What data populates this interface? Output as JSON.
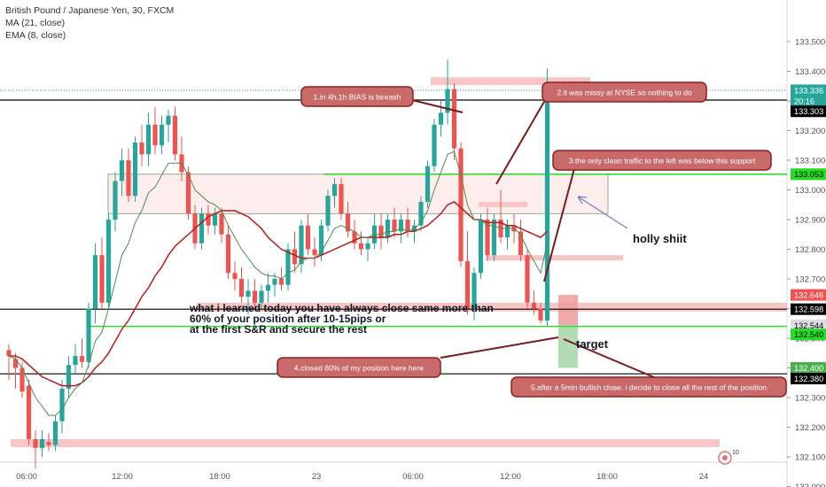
{
  "header": {
    "title": "British Pound / Japanese Yen, 30, FXCM",
    "indicators": [
      "MA (21, close)",
      "EMA (8, close)"
    ]
  },
  "colors": {
    "bull": "#26a69a",
    "bear": "#ef5350",
    "ma21": "#b71c1c",
    "ema8": "#4e8a4e",
    "zone_fill": "#f6c6c6",
    "box_fill": "#fde9e9",
    "green_line": "#22dd22",
    "note_fill": "#c96a6a",
    "note_border": "#8e2020",
    "note_text": "#ffffff",
    "arrow": "#7a1a1a"
  },
  "chart_data": {
    "type": "candlestick",
    "title": "British Pound / Japanese Yen, 30, FXCM",
    "ylim": [
      131.96,
      133.5
    ],
    "y_ticks": [
      "133.500",
      "133.400",
      "133.300",
      "133.200",
      "133.100",
      "133.000",
      "132.900",
      "132.800",
      "132.700",
      "132.600",
      "132.500",
      "132.400",
      "132.300",
      "132.200",
      "132.100",
      "132.000"
    ],
    "x_ticks": [
      "06:00",
      "12:00",
      "18:00",
      "23",
      "06:00",
      "12:00",
      "18:00",
      "24"
    ],
    "candles": [
      {
        "o": 132.46,
        "h": 132.48,
        "l": 132.36,
        "c": 132.44
      },
      {
        "o": 132.43,
        "h": 132.45,
        "l": 132.33,
        "c": 132.4
      },
      {
        "o": 132.4,
        "h": 132.42,
        "l": 132.3,
        "c": 132.32
      },
      {
        "o": 132.34,
        "h": 132.36,
        "l": 132.14,
        "c": 132.16
      },
      {
        "o": 132.16,
        "h": 132.19,
        "l": 132.06,
        "c": 132.13
      },
      {
        "o": 132.13,
        "h": 132.19,
        "l": 132.1,
        "c": 132.16
      },
      {
        "o": 132.15,
        "h": 132.18,
        "l": 132.12,
        "c": 132.14
      },
      {
        "o": 132.14,
        "h": 132.24,
        "l": 132.12,
        "c": 132.22
      },
      {
        "o": 132.22,
        "h": 132.36,
        "l": 132.18,
        "c": 132.33
      },
      {
        "o": 132.33,
        "h": 132.44,
        "l": 132.3,
        "c": 132.41
      },
      {
        "o": 132.41,
        "h": 132.48,
        "l": 132.38,
        "c": 132.44
      },
      {
        "o": 132.44,
        "h": 132.5,
        "l": 132.4,
        "c": 132.42
      },
      {
        "o": 132.42,
        "h": 132.62,
        "l": 132.4,
        "c": 132.6
      },
      {
        "o": 132.6,
        "h": 132.82,
        "l": 132.55,
        "c": 132.78
      },
      {
        "o": 132.78,
        "h": 132.84,
        "l": 132.6,
        "c": 132.62
      },
      {
        "o": 132.62,
        "h": 132.92,
        "l": 132.6,
        "c": 132.9
      },
      {
        "o": 132.9,
        "h": 133.06,
        "l": 132.86,
        "c": 133.03
      },
      {
        "o": 133.03,
        "h": 133.14,
        "l": 132.98,
        "c": 133.1
      },
      {
        "o": 133.1,
        "h": 133.14,
        "l": 132.96,
        "c": 132.98
      },
      {
        "o": 132.98,
        "h": 133.18,
        "l": 132.96,
        "c": 133.16
      },
      {
        "o": 133.16,
        "h": 133.22,
        "l": 133.08,
        "c": 133.12
      },
      {
        "o": 133.12,
        "h": 133.26,
        "l": 133.08,
        "c": 133.22
      },
      {
        "o": 133.22,
        "h": 133.28,
        "l": 133.12,
        "c": 133.15
      },
      {
        "o": 133.15,
        "h": 133.25,
        "l": 133.12,
        "c": 133.22
      },
      {
        "o": 133.22,
        "h": 133.27,
        "l": 133.16,
        "c": 133.25
      },
      {
        "o": 133.25,
        "h": 133.28,
        "l": 133.1,
        "c": 133.12
      },
      {
        "o": 133.12,
        "h": 133.18,
        "l": 133.03,
        "c": 133.06
      },
      {
        "o": 133.06,
        "h": 133.08,
        "l": 132.9,
        "c": 132.92
      },
      {
        "o": 132.92,
        "h": 132.95,
        "l": 132.8,
        "c": 132.82
      },
      {
        "o": 132.82,
        "h": 132.94,
        "l": 132.8,
        "c": 132.92
      },
      {
        "o": 132.92,
        "h": 132.95,
        "l": 132.85,
        "c": 132.88
      },
      {
        "o": 132.88,
        "h": 132.94,
        "l": 132.85,
        "c": 132.92
      },
      {
        "o": 132.92,
        "h": 132.94,
        "l": 132.82,
        "c": 132.85
      },
      {
        "o": 132.85,
        "h": 132.88,
        "l": 132.7,
        "c": 132.72
      },
      {
        "o": 132.72,
        "h": 132.76,
        "l": 132.66,
        "c": 132.7
      },
      {
        "o": 132.7,
        "h": 132.74,
        "l": 132.62,
        "c": 132.64
      },
      {
        "o": 132.64,
        "h": 132.7,
        "l": 132.58,
        "c": 132.66
      },
      {
        "o": 132.66,
        "h": 132.7,
        "l": 132.6,
        "c": 132.62
      },
      {
        "o": 132.62,
        "h": 132.68,
        "l": 132.6,
        "c": 132.66
      },
      {
        "o": 132.66,
        "h": 132.72,
        "l": 132.62,
        "c": 132.68
      },
      {
        "o": 132.68,
        "h": 132.72,
        "l": 132.64,
        "c": 132.7
      },
      {
        "o": 132.7,
        "h": 132.74,
        "l": 132.66,
        "c": 132.68
      },
      {
        "o": 132.68,
        "h": 132.82,
        "l": 132.66,
        "c": 132.8
      },
      {
        "o": 132.8,
        "h": 132.86,
        "l": 132.72,
        "c": 132.75
      },
      {
        "o": 132.75,
        "h": 132.9,
        "l": 132.72,
        "c": 132.88
      },
      {
        "o": 132.88,
        "h": 132.92,
        "l": 132.78,
        "c": 132.8
      },
      {
        "o": 132.8,
        "h": 132.84,
        "l": 132.74,
        "c": 132.78
      },
      {
        "o": 132.78,
        "h": 132.9,
        "l": 132.76,
        "c": 132.88
      },
      {
        "o": 132.88,
        "h": 133.0,
        "l": 132.86,
        "c": 132.98
      },
      {
        "o": 132.98,
        "h": 133.04,
        "l": 132.94,
        "c": 133.02
      },
      {
        "o": 133.02,
        "h": 133.04,
        "l": 132.9,
        "c": 132.92
      },
      {
        "o": 132.92,
        "h": 132.96,
        "l": 132.84,
        "c": 132.86
      },
      {
        "o": 132.86,
        "h": 132.9,
        "l": 132.8,
        "c": 132.82
      },
      {
        "o": 132.82,
        "h": 132.86,
        "l": 132.78,
        "c": 132.8
      },
      {
        "o": 132.8,
        "h": 132.84,
        "l": 132.76,
        "c": 132.82
      },
      {
        "o": 132.82,
        "h": 132.92,
        "l": 132.8,
        "c": 132.88
      },
      {
        "o": 132.88,
        "h": 132.92,
        "l": 132.8,
        "c": 132.84
      },
      {
        "o": 132.84,
        "h": 132.92,
        "l": 132.82,
        "c": 132.9
      },
      {
        "o": 132.9,
        "h": 132.94,
        "l": 132.84,
        "c": 132.86
      },
      {
        "o": 132.86,
        "h": 132.92,
        "l": 132.82,
        "c": 132.9
      },
      {
        "o": 132.9,
        "h": 132.94,
        "l": 132.84,
        "c": 132.86
      },
      {
        "o": 132.86,
        "h": 132.9,
        "l": 132.82,
        "c": 132.88
      },
      {
        "o": 132.88,
        "h": 132.98,
        "l": 132.86,
        "c": 132.96
      },
      {
        "o": 132.96,
        "h": 133.1,
        "l": 132.94,
        "c": 133.08
      },
      {
        "o": 133.08,
        "h": 133.24,
        "l": 133.06,
        "c": 133.22
      },
      {
        "o": 133.22,
        "h": 133.3,
        "l": 133.18,
        "c": 133.26
      },
      {
        "o": 133.26,
        "h": 133.44,
        "l": 133.22,
        "c": 133.34
      },
      {
        "o": 133.34,
        "h": 133.36,
        "l": 133.1,
        "c": 133.14
      },
      {
        "o": 133.14,
        "h": 133.16,
        "l": 132.74,
        "c": 132.76
      },
      {
        "o": 132.76,
        "h": 132.86,
        "l": 132.58,
        "c": 132.6
      },
      {
        "o": 132.6,
        "h": 132.74,
        "l": 132.56,
        "c": 132.72
      },
      {
        "o": 132.72,
        "h": 132.92,
        "l": 132.7,
        "c": 132.9
      },
      {
        "o": 132.9,
        "h": 132.94,
        "l": 132.76,
        "c": 132.78
      },
      {
        "o": 132.78,
        "h": 132.92,
        "l": 132.76,
        "c": 132.9
      },
      {
        "o": 132.9,
        "h": 133.0,
        "l": 132.82,
        "c": 132.84
      },
      {
        "o": 132.84,
        "h": 132.9,
        "l": 132.8,
        "c": 132.88
      },
      {
        "o": 132.88,
        "h": 132.92,
        "l": 132.82,
        "c": 132.86
      },
      {
        "o": 132.86,
        "h": 132.9,
        "l": 132.76,
        "c": 132.78
      },
      {
        "o": 132.78,
        "h": 132.8,
        "l": 132.6,
        "c": 132.62
      },
      {
        "o": 132.62,
        "h": 132.66,
        "l": 132.58,
        "c": 132.6
      },
      {
        "o": 132.6,
        "h": 132.62,
        "l": 132.55,
        "c": 132.56
      },
      {
        "o": 132.56,
        "h": 133.41,
        "l": 132.54,
        "c": 133.33
      }
    ],
    "ma21": [
      132.44,
      132.44,
      132.43,
      132.41,
      132.39,
      132.37,
      132.36,
      132.35,
      132.34,
      132.34,
      132.34,
      132.35,
      132.37,
      132.4,
      132.42,
      132.45,
      132.49,
      132.53,
      132.56,
      132.6,
      132.64,
      132.67,
      132.71,
      132.74,
      132.78,
      132.81,
      132.83,
      132.85,
      132.87,
      132.89,
      132.91,
      132.92,
      132.93,
      132.93,
      132.93,
      132.92,
      132.91,
      132.89,
      132.87,
      132.84,
      132.82,
      132.8,
      132.79,
      132.78,
      132.77,
      132.77,
      132.77,
      132.78,
      132.79,
      132.8,
      132.81,
      132.82,
      132.83,
      132.84,
      132.84,
      132.84,
      132.84,
      132.84,
      132.85,
      132.85,
      132.86,
      132.86,
      132.87,
      132.88,
      132.9,
      132.92,
      132.95,
      132.96,
      132.94,
      132.92,
      132.9,
      132.9,
      132.89,
      132.89,
      132.89,
      132.88,
      132.88,
      132.87,
      132.86,
      132.85,
      132.84,
      132.86
    ],
    "ema8": [
      132.44,
      132.43,
      132.4,
      132.35,
      132.3,
      132.27,
      132.24,
      132.24,
      132.26,
      132.3,
      132.33,
      132.35,
      132.41,
      132.49,
      132.52,
      132.6,
      132.69,
      132.78,
      132.82,
      132.89,
      132.93,
      132.99,
      133.01,
      133.05,
      133.09,
      133.09,
      133.09,
      133.05,
      133.0,
      132.98,
      132.96,
      132.95,
      132.93,
      132.88,
      132.84,
      132.8,
      132.77,
      132.74,
      132.72,
      132.71,
      132.71,
      132.7,
      132.72,
      132.73,
      132.76,
      132.77,
      132.77,
      132.79,
      132.83,
      132.87,
      132.88,
      132.87,
      132.86,
      132.84,
      132.84,
      132.85,
      132.85,
      132.86,
      132.86,
      132.87,
      132.86,
      132.87,
      132.89,
      132.93,
      133.0,
      133.06,
      133.12,
      133.13,
      133.05,
      132.95,
      132.9,
      132.9,
      132.88,
      132.88,
      132.87,
      132.87,
      132.87,
      132.85,
      132.8,
      132.76,
      132.72,
      132.82
    ],
    "last_price": "133.336",
    "countdown": "20:16",
    "price_lines": [
      {
        "id": "black-133303",
        "price": 133.303,
        "label": "133.303",
        "style": "black"
      },
      {
        "id": "green-133053",
        "price": 133.053,
        "label": "133.053",
        "style": "green"
      },
      {
        "id": "black-132598",
        "price": 132.598,
        "label": "132.598",
        "style": "black"
      },
      {
        "id": "green-132540",
        "price": 132.54,
        "label": "132.540",
        "style": "green"
      },
      {
        "id": "black-132380",
        "price": 132.38,
        "label": "132.380",
        "style": "black"
      }
    ],
    "axis_badges": [
      {
        "label": "133.336",
        "price": 133.336,
        "bg": "#26a69a",
        "fg": "#ffffff"
      },
      {
        "label": "20:16",
        "price": 133.3,
        "bg": "#26a69a",
        "fg": "#ffffff"
      },
      {
        "label": "133.303",
        "price": 133.265,
        "bg": "#000000",
        "fg": "#ffffff"
      },
      {
        "label": "133.053",
        "price": 133.053,
        "bg": "#22dd22",
        "fg": "#000000"
      },
      {
        "label": "132.646",
        "price": 132.646,
        "bg": "#ef5350",
        "fg": "#ffffff"
      },
      {
        "label": "132.598",
        "price": 132.598,
        "bg": "#000000",
        "fg": "#ffffff"
      },
      {
        "label": "132.544",
        "price": 132.544,
        "bg": "#d9dde3",
        "fg": "#000000"
      },
      {
        "label": "132.540",
        "price": 132.513,
        "bg": "#22dd22",
        "fg": "#000000"
      },
      {
        "label": "132.400",
        "price": 132.4,
        "bg": "#4caf50",
        "fg": "#ffffff"
      },
      {
        "label": "132.380",
        "price": 132.364,
        "bg": "#000000",
        "fg": "#ffffff"
      }
    ],
    "annotations": [
      {
        "id": "note-1",
        "text": "1.in 4h.1h BIAS is bireash"
      },
      {
        "id": "note-2",
        "text": "2.it was missy at NYSE so nothing to do"
      },
      {
        "id": "note-3",
        "text": "3.the only clean traffic to the left was below this support"
      },
      {
        "id": "note-4",
        "text": "4.closed 80% of my position here  here"
      },
      {
        "id": "note-5",
        "text": "5.after a 5min bullish close. i decide to close all the rest of the position"
      }
    ],
    "comments": {
      "holly": "holly shiit",
      "target": "target",
      "lesson": [
        "what i learned today you have always close same more than",
        "60% of your position after 10-15pips or",
        "at the first S&R and secure the rest"
      ]
    }
  }
}
